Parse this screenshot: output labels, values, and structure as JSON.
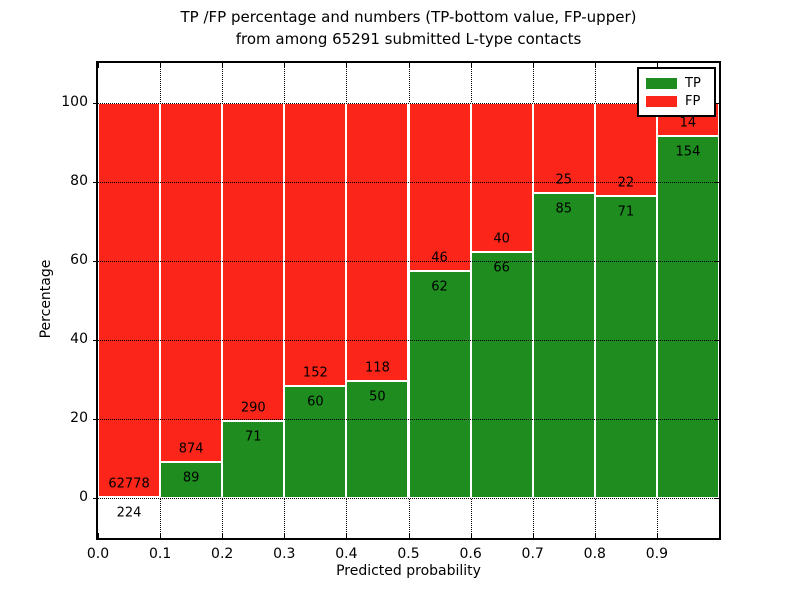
{
  "chart_data": {
    "type": "bar",
    "stacked": true,
    "orientation": "vertical",
    "title_line1": "TP /FP percentage and numbers (TP-bottom value, FP-upper)",
    "title_line2": "from among 65291 submitted L-type contacts",
    "xlabel": "Predicted probability",
    "ylabel": "Percentage",
    "xlim": [
      0.0,
      1.0
    ],
    "ylim": [
      -10,
      110
    ],
    "grid": "dotted",
    "legend_position": "upper right",
    "bin_width": 0.1,
    "bin_starts": [
      0.0,
      0.1,
      0.2,
      0.3,
      0.4,
      0.5,
      0.6,
      0.7,
      0.8,
      0.9
    ],
    "x_tick_labels": [
      "0.0",
      "0.1",
      "0.2",
      "0.3",
      "0.4",
      "0.5",
      "0.6",
      "0.7",
      "0.8",
      "0.9"
    ],
    "y_ticks": [
      0,
      20,
      40,
      60,
      80,
      100
    ],
    "series": [
      {
        "name": "TP",
        "position": "bottom",
        "color": "#1e8c1e",
        "values": [
          224,
          89,
          71,
          60,
          50,
          62,
          66,
          85,
          71,
          154
        ]
      },
      {
        "name": "FP",
        "position": "top",
        "color": "#fb2619",
        "values": [
          62778,
          874,
          290,
          152,
          118,
          46,
          40,
          25,
          22,
          14
        ]
      }
    ],
    "tp_percent_by_bin": [
      0.36,
      9.24,
      19.67,
      28.3,
      29.76,
      57.41,
      62.26,
      77.27,
      76.34,
      91.67
    ],
    "fp_percent_by_bin": [
      99.64,
      90.76,
      80.33,
      71.7,
      70.24,
      42.59,
      37.74,
      22.73,
      23.66,
      8.33
    ]
  }
}
